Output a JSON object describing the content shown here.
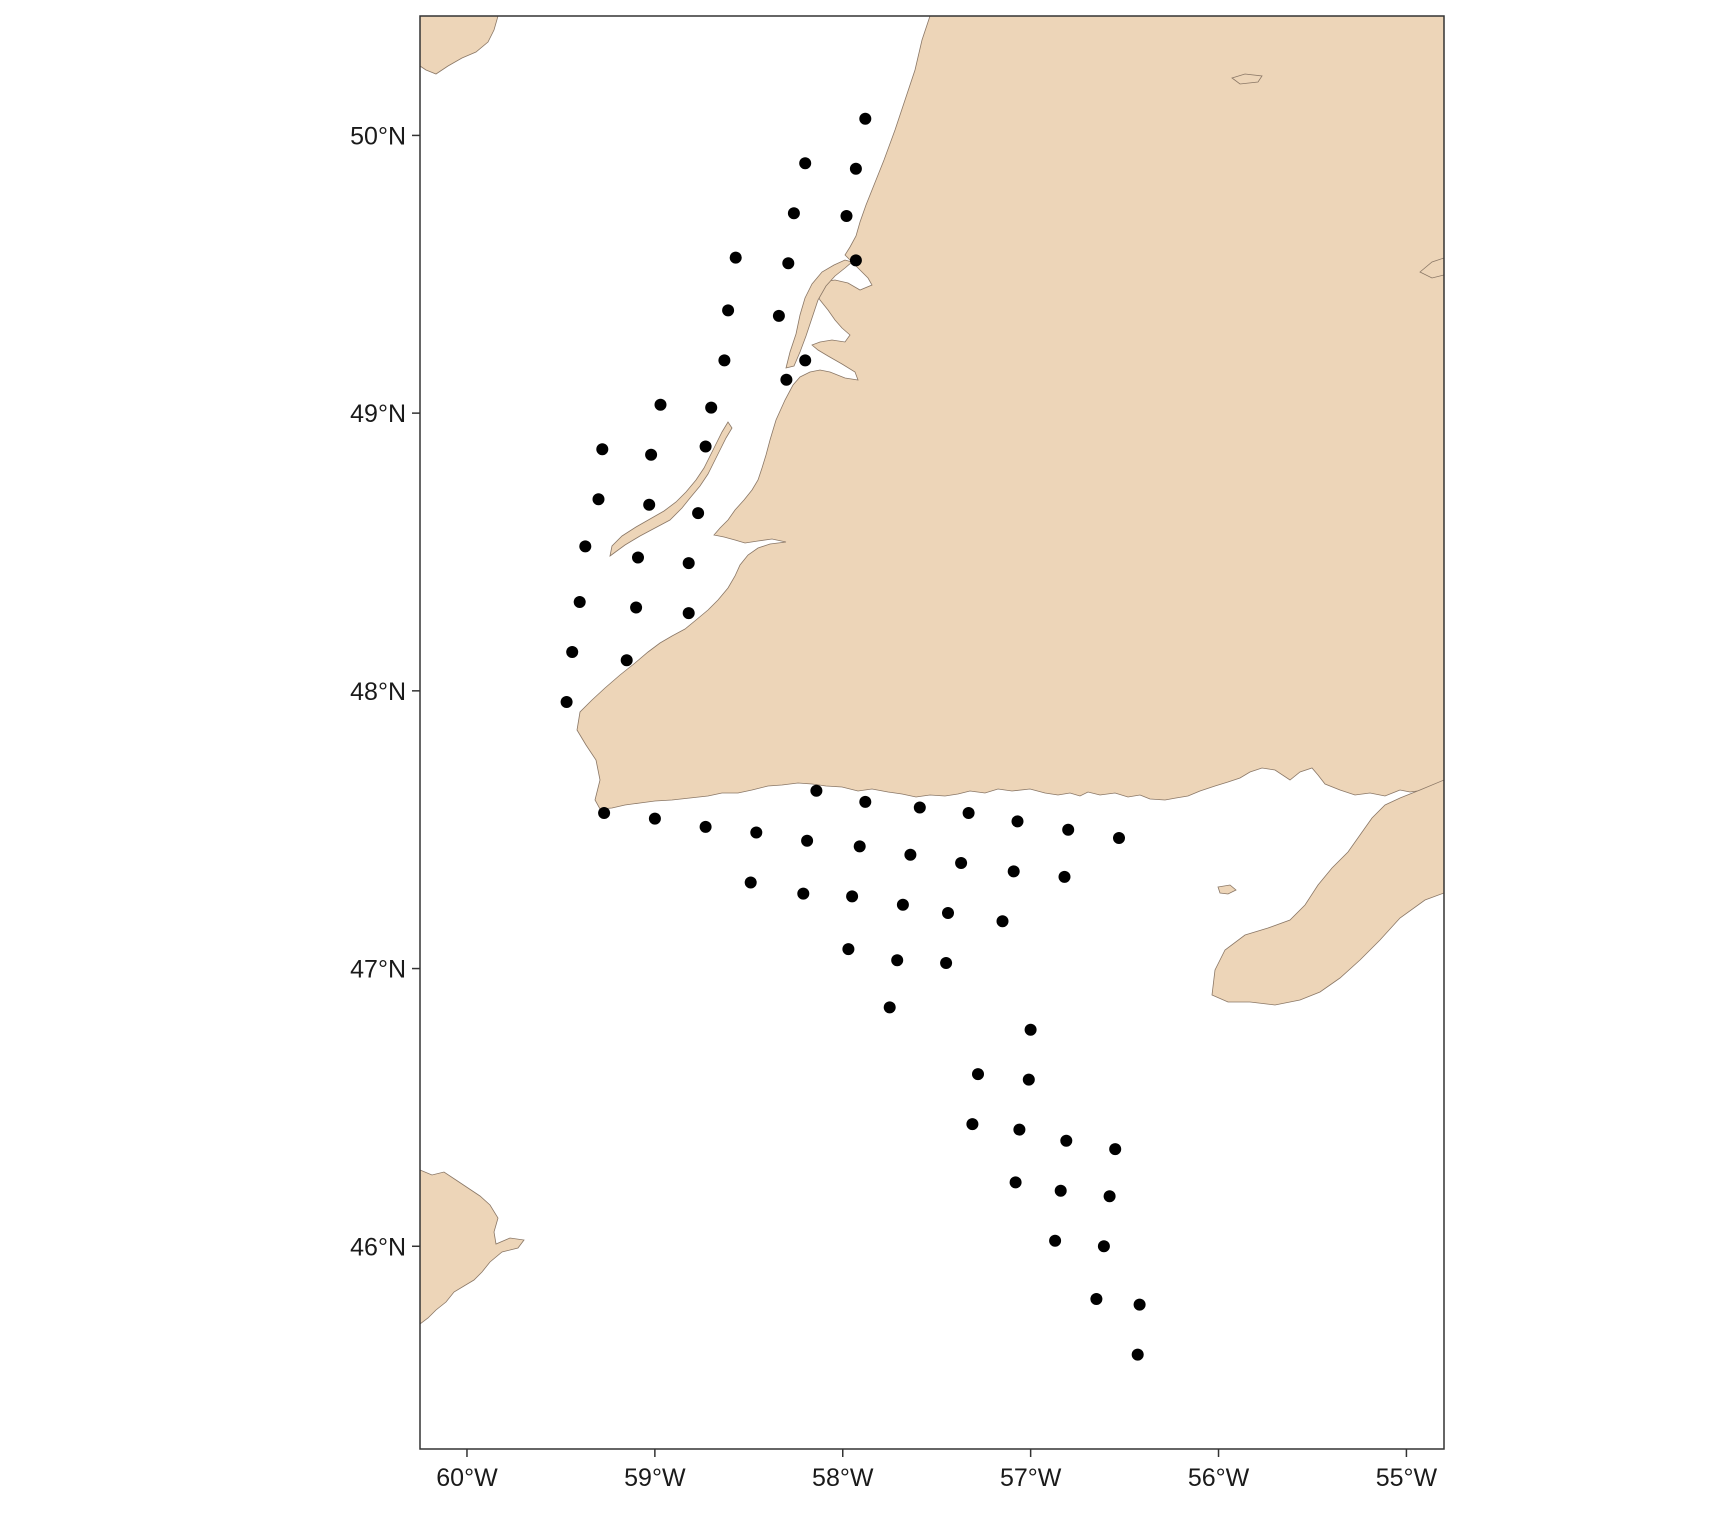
{
  "map": {
    "land_color": "#edd5b8",
    "land_outline": "#8a7766",
    "point_color": "#000000",
    "frame_color": "#333333",
    "x_axis": {
      "range": [
        -60.25,
        -54.8
      ],
      "ticks": [
        {
          "value": -60,
          "label": "60°W"
        },
        {
          "value": -59,
          "label": "59°W"
        },
        {
          "value": -58,
          "label": "58°W"
        },
        {
          "value": -57,
          "label": "57°W"
        },
        {
          "value": -56,
          "label": "56°W"
        },
        {
          "value": -55,
          "label": "55°W"
        }
      ]
    },
    "y_axis": {
      "range": [
        45.27,
        50.43
      ],
      "ticks": [
        {
          "value": 50,
          "label": "50°N"
        },
        {
          "value": 49,
          "label": "49°N"
        },
        {
          "value": 48,
          "label": "48°N"
        },
        {
          "value": 47,
          "label": "47°N"
        },
        {
          "value": 46,
          "label": "46°N"
        }
      ]
    },
    "stations": [
      [
        -57.88,
        50.06
      ],
      [
        -58.2,
        49.9
      ],
      [
        -57.93,
        49.88
      ],
      [
        -58.26,
        49.72
      ],
      [
        -57.98,
        49.71
      ],
      [
        -58.57,
        49.56
      ],
      [
        -58.29,
        49.54
      ],
      [
        -57.93,
        49.55
      ],
      [
        -58.61,
        49.37
      ],
      [
        -58.34,
        49.35
      ],
      [
        -58.63,
        49.19
      ],
      [
        -58.2,
        49.19
      ],
      [
        -58.3,
        49.12
      ],
      [
        -58.97,
        49.03
      ],
      [
        -58.7,
        49.02
      ],
      [
        -59.28,
        48.87
      ],
      [
        -59.02,
        48.85
      ],
      [
        -58.73,
        48.88
      ],
      [
        -59.3,
        48.69
      ],
      [
        -59.03,
        48.67
      ],
      [
        -58.77,
        48.64
      ],
      [
        -59.37,
        48.52
      ],
      [
        -59.09,
        48.48
      ],
      [
        -58.82,
        48.46
      ],
      [
        -59.4,
        48.32
      ],
      [
        -59.1,
        48.3
      ],
      [
        -58.82,
        48.28
      ],
      [
        -59.44,
        48.14
      ],
      [
        -59.15,
        48.11
      ],
      [
        -59.47,
        47.96
      ],
      [
        -59.27,
        47.56
      ],
      [
        -59.0,
        47.54
      ],
      [
        -58.73,
        47.51
      ],
      [
        -58.14,
        47.64
      ],
      [
        -57.88,
        47.6
      ],
      [
        -57.59,
        47.58
      ],
      [
        -57.33,
        47.56
      ],
      [
        -57.07,
        47.53
      ],
      [
        -56.8,
        47.5
      ],
      [
        -56.53,
        47.47
      ],
      [
        -58.46,
        47.49
      ],
      [
        -58.19,
        47.46
      ],
      [
        -57.91,
        47.44
      ],
      [
        -57.64,
        47.41
      ],
      [
        -57.37,
        47.38
      ],
      [
        -57.09,
        47.35
      ],
      [
        -56.82,
        47.33
      ],
      [
        -58.49,
        47.31
      ],
      [
        -58.21,
        47.27
      ],
      [
        -57.95,
        47.26
      ],
      [
        -57.68,
        47.23
      ],
      [
        -57.44,
        47.2
      ],
      [
        -57.15,
        47.17
      ],
      [
        -57.97,
        47.07
      ],
      [
        -57.71,
        47.03
      ],
      [
        -57.45,
        47.02
      ],
      [
        -57.75,
        46.86
      ],
      [
        -57.0,
        46.78
      ],
      [
        -57.28,
        46.62
      ],
      [
        -57.01,
        46.6
      ],
      [
        -57.31,
        46.44
      ],
      [
        -57.06,
        46.42
      ],
      [
        -56.81,
        46.38
      ],
      [
        -56.55,
        46.35
      ],
      [
        -57.08,
        46.23
      ],
      [
        -56.84,
        46.2
      ],
      [
        -56.58,
        46.18
      ],
      [
        -56.87,
        46.02
      ],
      [
        -56.61,
        46.0
      ],
      [
        -56.65,
        45.81
      ],
      [
        -56.42,
        45.79
      ],
      [
        -56.43,
        45.61
      ]
    ]
  }
}
